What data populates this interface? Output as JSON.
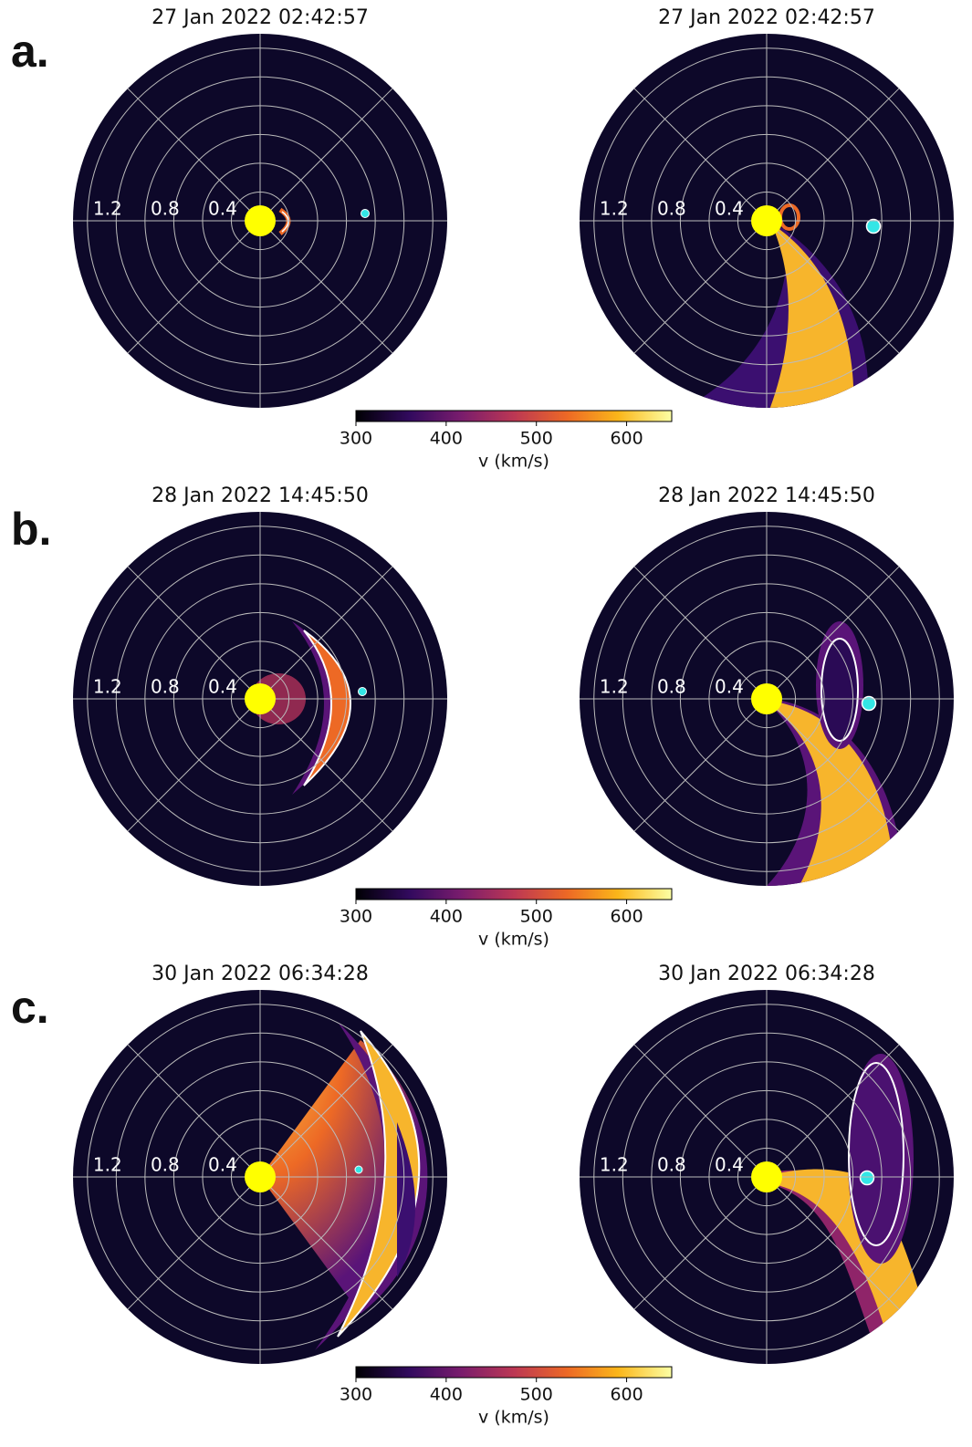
{
  "chart_data": [
    {
      "type": "polar-pair",
      "panel": "a.",
      "titles": [
        "27 Jan 2022 02:42:57",
        "27 Jan 2022 02:42:57"
      ],
      "rlim": [
        0,
        1.3
      ],
      "rticks": [
        0.4,
        0.8,
        1.2
      ],
      "rgrid": [
        0.2,
        0.6,
        1.0
      ],
      "colorbar": {
        "clim": [
          300,
          650
        ],
        "ticks": [
          300,
          400,
          500,
          600
        ],
        "label": "v (km/s)"
      }
    },
    {
      "type": "polar-pair",
      "panel": "b.",
      "titles": [
        "28 Jan 2022 14:45:50",
        "28 Jan 2022 14:45:50"
      ],
      "rlim": [
        0,
        1.3
      ],
      "rticks": [
        0.4,
        0.8,
        1.2
      ],
      "rgrid": [
        0.2,
        0.6,
        1.0
      ],
      "colorbar": {
        "clim": [
          300,
          650
        ],
        "ticks": [
          300,
          400,
          500,
          600
        ],
        "label": "v (km/s)"
      }
    },
    {
      "type": "polar-pair",
      "panel": "c.",
      "titles": [
        "30 Jan 2022 06:34:28",
        "30 Jan 2022 06:34:28"
      ],
      "rlim": [
        0,
        1.3
      ],
      "rticks": [
        0.4,
        0.8,
        1.2
      ],
      "rgrid": [
        0.2,
        0.6,
        1.0
      ],
      "colorbar": {
        "clim": [
          300,
          650
        ],
        "ticks": [
          300,
          400,
          500,
          600
        ],
        "label": "v (km/s)"
      }
    }
  ]
}
